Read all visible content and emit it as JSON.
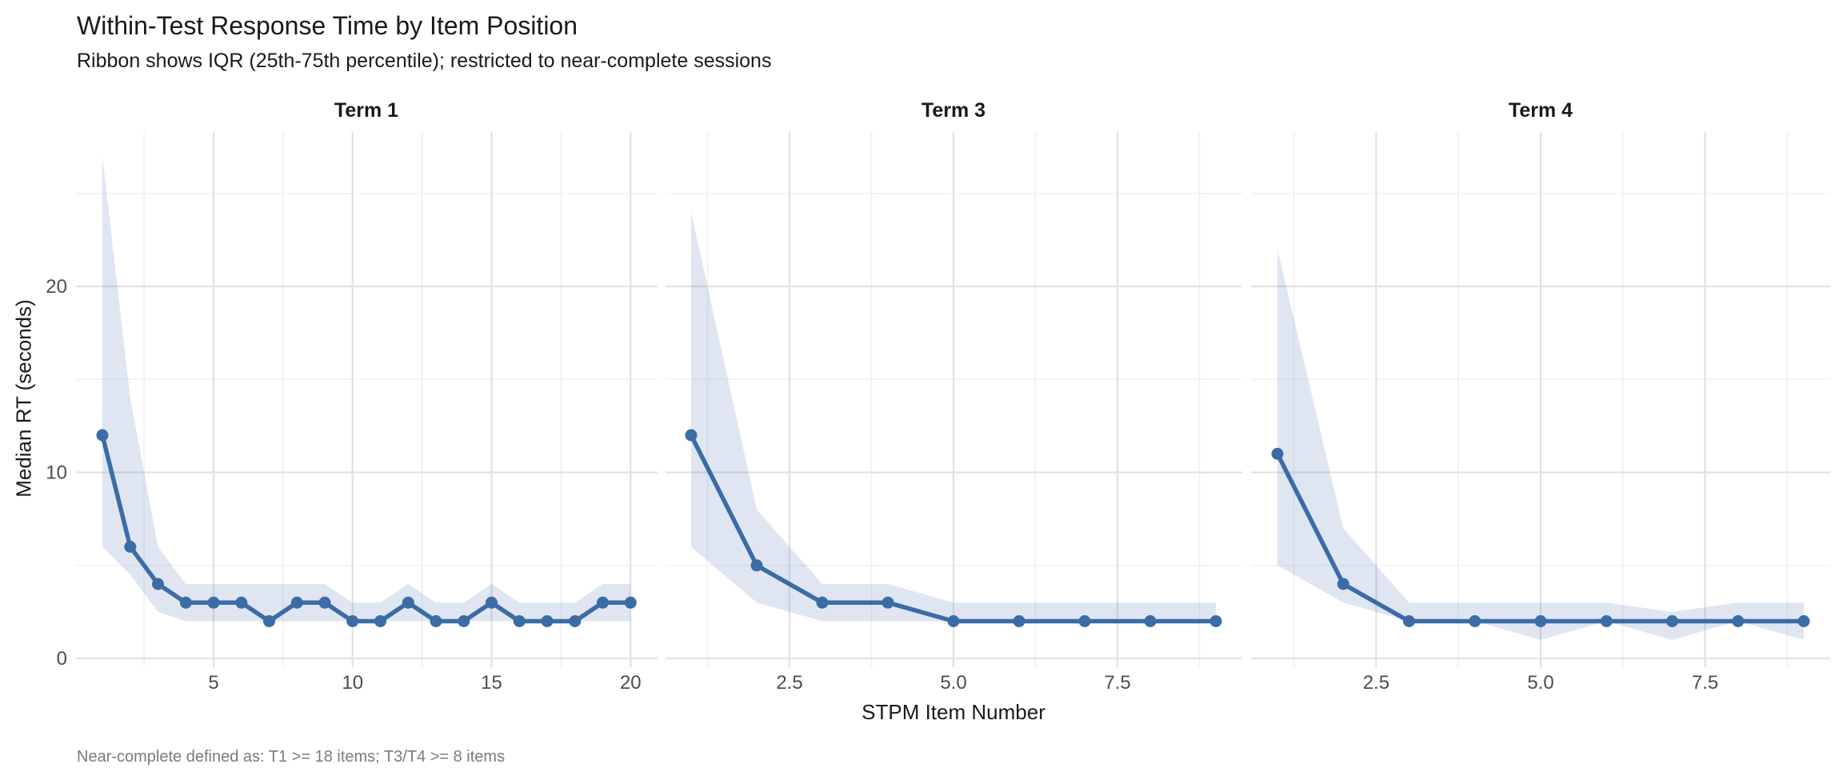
{
  "header": {
    "title": "Within-Test Response Time by Item Position",
    "subtitle": "Ribbon shows IQR (25th-75th percentile); restricted to near-complete sessions"
  },
  "caption": "Near-complete defined as: T1 >= 18 items; T3/T4 >= 8 items",
  "axes": {
    "x_title": "STPM Item Number",
    "y_title": "Median RT (seconds)"
  },
  "chart_data": {
    "type": "line",
    "title": "Within-Test Response Time by Item Position",
    "subtitle": "Ribbon shows IQR (25th-75th percentile); restricted to near-complete sessions",
    "caption": "Near-complete defined as: T1 >= 18 items; T3/T4 >= 8 items",
    "xlabel": "STPM Item Number",
    "ylabel": "Median RT (seconds)",
    "ylim": [
      0,
      28.3
    ],
    "y_ticks_major": [
      0,
      10,
      20
    ],
    "y_tick_labels": [
      "0",
      "10",
      "20"
    ],
    "y_ticks_minor": [
      5,
      15,
      25
    ],
    "grid": "on",
    "legend": "none",
    "facets": [
      {
        "label": "Term 1",
        "x": [
          1,
          2,
          3,
          4,
          5,
          6,
          7,
          8,
          9,
          10,
          11,
          12,
          13,
          14,
          15,
          16,
          17,
          18,
          19,
          20
        ],
        "median": [
          12,
          6,
          4,
          3,
          3,
          3,
          2,
          3,
          3,
          2,
          2,
          3,
          2,
          2,
          3,
          2,
          2,
          2,
          3,
          3
        ],
        "q25": [
          6,
          4.5,
          2.5,
          2,
          2,
          2,
          2,
          2,
          2,
          2,
          2,
          2,
          2,
          2,
          2,
          2,
          2,
          2,
          2,
          2
        ],
        "q75": [
          27,
          14,
          6,
          4,
          4,
          4,
          4,
          4,
          4,
          3,
          3,
          4,
          3,
          3,
          4,
          3,
          3,
          3,
          4,
          4
        ],
        "x_tick_values": [
          5,
          10,
          15,
          20
        ],
        "x_tick_labels": [
          "5",
          "10",
          "15",
          "20"
        ],
        "x_ticks_minor": [
          2.5,
          7.5,
          12.5,
          17.5
        ]
      },
      {
        "label": "Term 3",
        "x": [
          1,
          2,
          3,
          4,
          5,
          6,
          7,
          8,
          9
        ],
        "median": [
          12,
          5,
          3,
          3,
          2,
          2,
          2,
          2,
          2
        ],
        "q25": [
          6,
          3,
          2,
          2,
          2,
          2,
          2,
          2,
          2
        ],
        "q75": [
          24,
          8,
          4,
          4,
          3,
          3,
          3,
          3,
          3
        ],
        "x_tick_values": [
          2.5,
          5,
          7.5
        ],
        "x_tick_labels": [
          "2.5",
          "5.0",
          "7.5"
        ],
        "x_ticks_minor": [
          1.25,
          3.75,
          6.25,
          8.75
        ]
      },
      {
        "label": "Term 4",
        "x": [
          1,
          2,
          3,
          4,
          5,
          6,
          7,
          8,
          9
        ],
        "median": [
          11,
          4,
          2,
          2,
          2,
          2,
          2,
          2,
          2
        ],
        "q25": [
          5,
          3,
          2,
          2,
          1,
          2,
          1,
          2,
          1
        ],
        "q75": [
          22,
          7,
          3,
          3,
          3,
          3,
          2.5,
          3,
          3
        ],
        "x_tick_values": [
          2.5,
          5,
          7.5
        ],
        "x_tick_labels": [
          "2.5",
          "5.0",
          "7.5"
        ],
        "x_ticks_minor": [
          1.25,
          3.75,
          6.25,
          8.75
        ]
      }
    ]
  },
  "style": {
    "line_color": "#3B6CA6",
    "point_color": "#3B6CA6",
    "ribbon_color": "#5E82BC",
    "ribbon_opacity": 0.2,
    "grid_major_color": "#E2E2E2",
    "grid_minor_color": "#F0F0F0",
    "tick_label_color": "#4D4D4D",
    "text_color": "#1A1A1A",
    "caption_color": "#7B7B7B",
    "background_color": "#FFFFFF"
  }
}
